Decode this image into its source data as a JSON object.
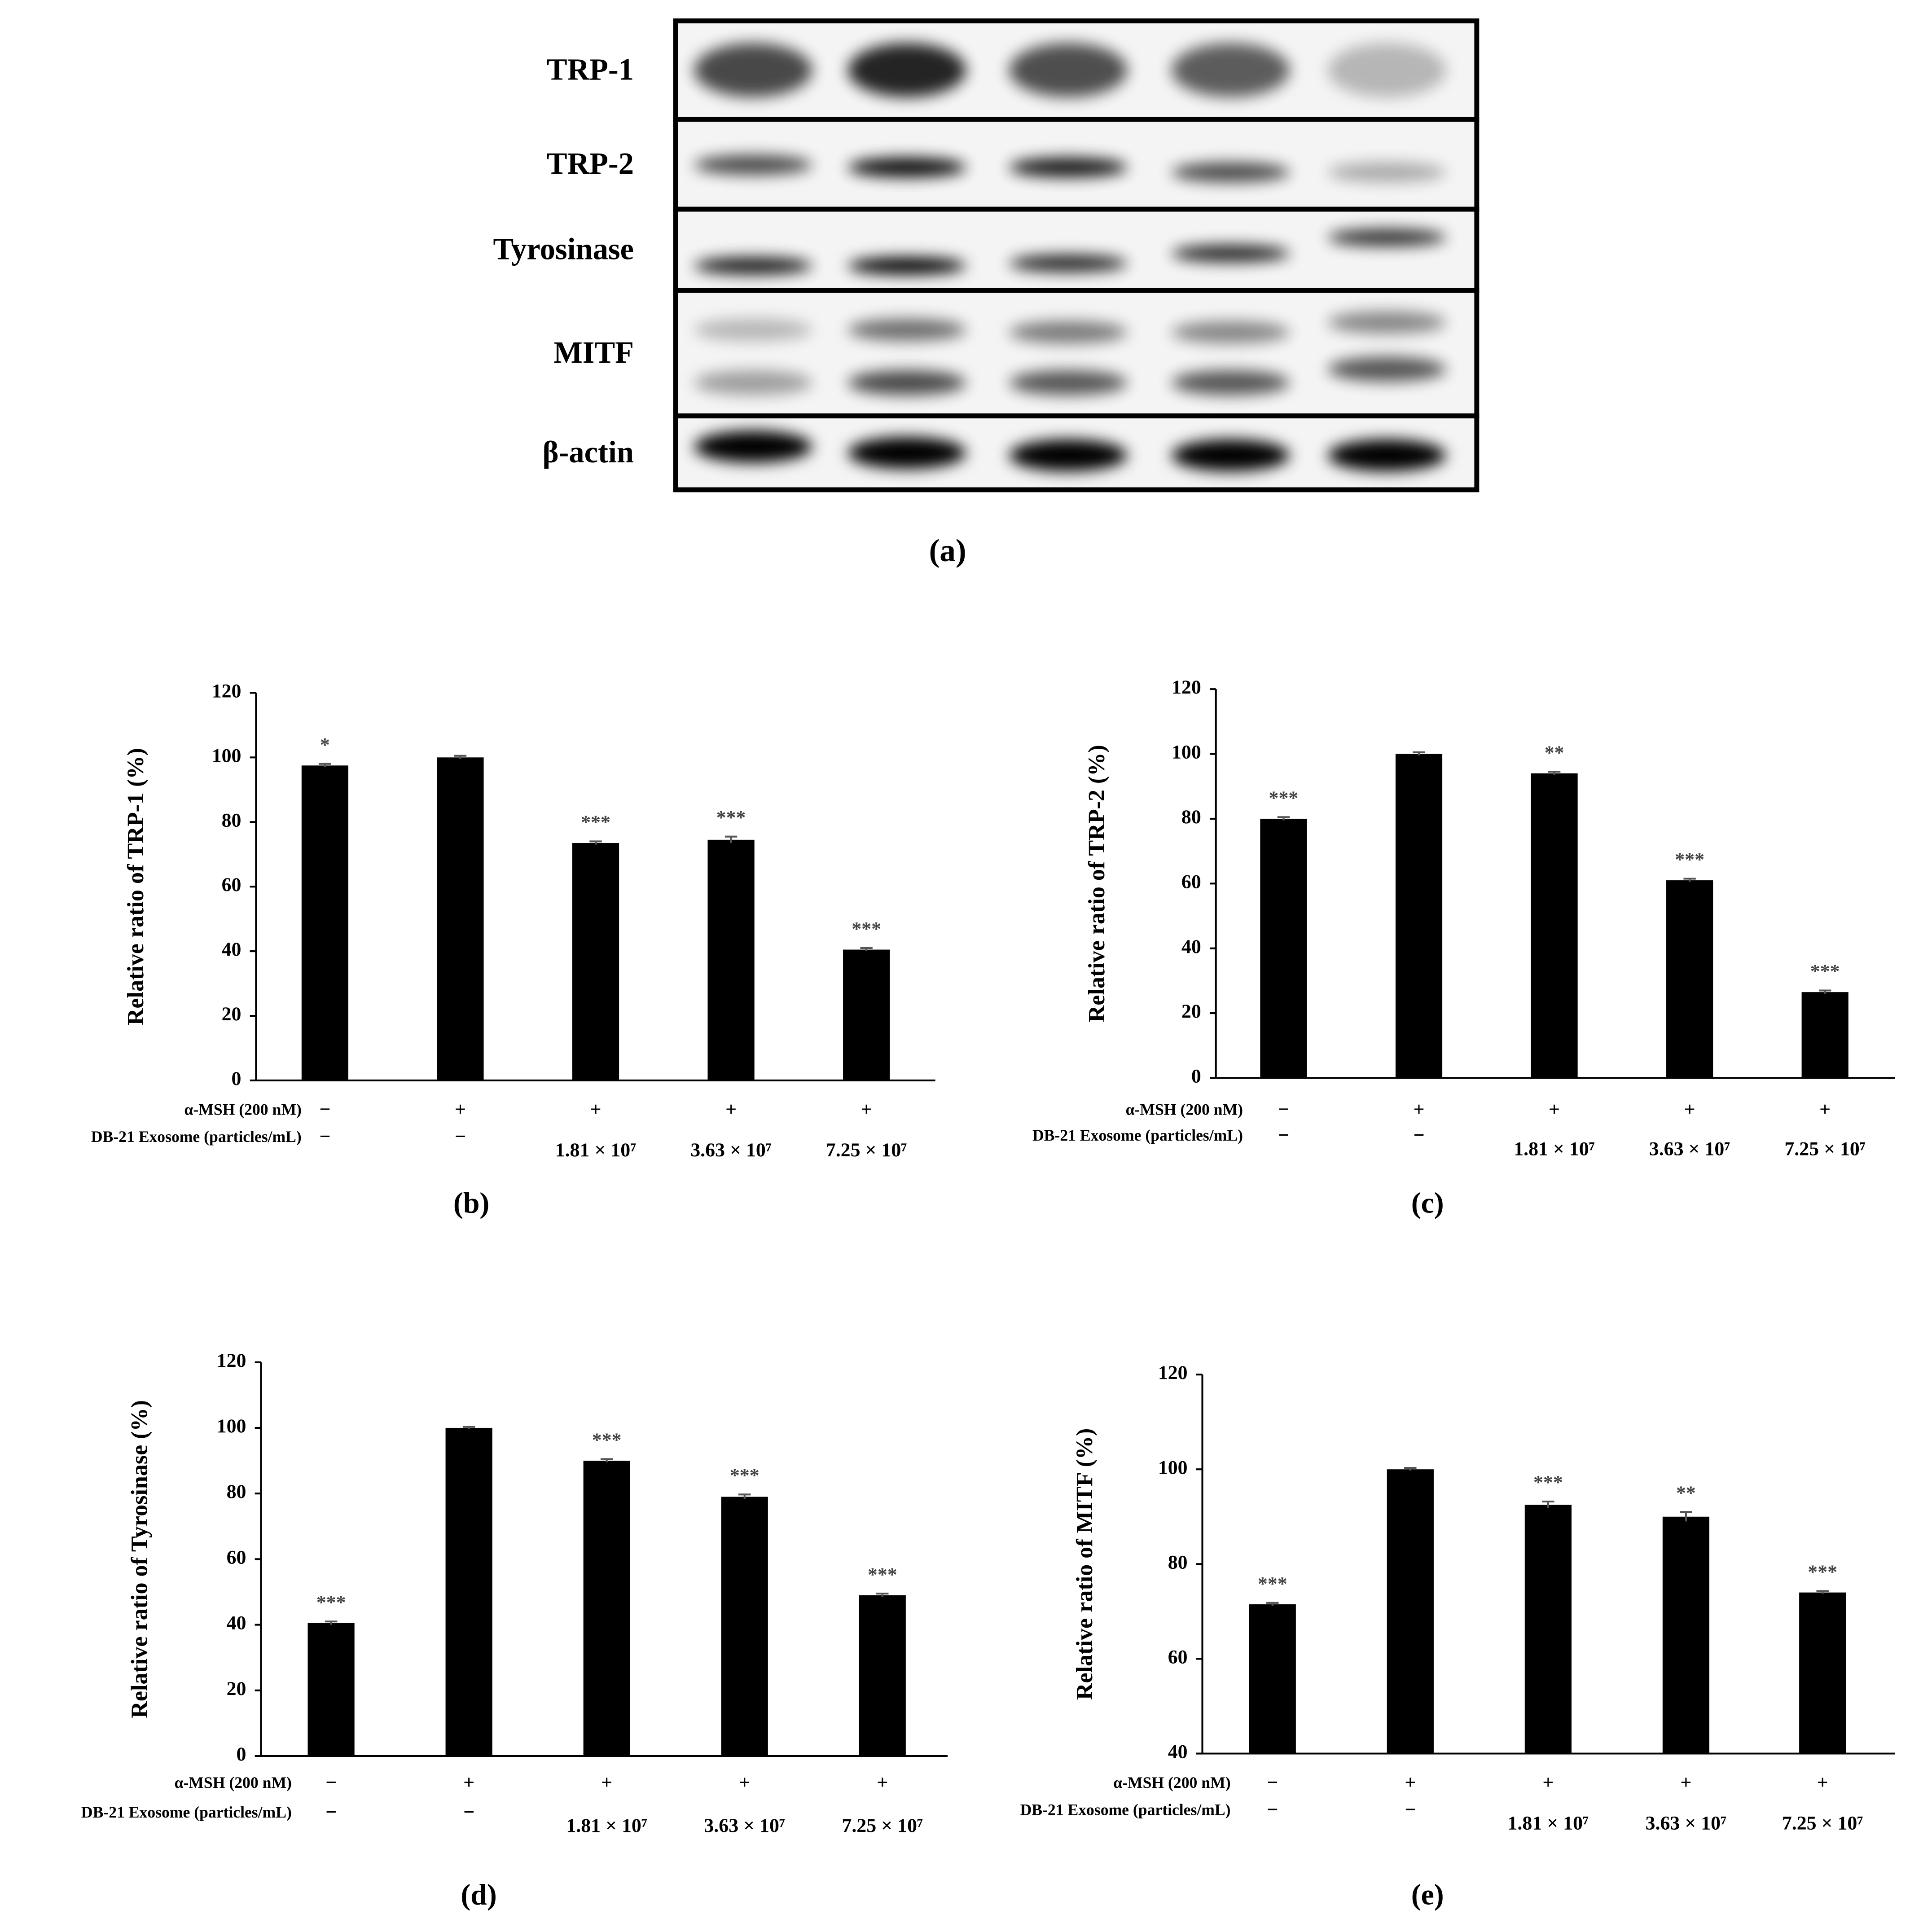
{
  "blot": {
    "rows": [
      "TRP-1",
      "TRP-2",
      "Tyrosinase",
      "MITF",
      "β-actin"
    ],
    "panel": "(a)"
  },
  "chart_data": [
    {
      "type": "bar",
      "panel": "(b)",
      "ylabel": "Relative ratio of TRP-1 (%)",
      "color": "#000000",
      "row_labels": [
        "α-MSH (200 nM)",
        "DB-21 Exosome (particles/mL)"
      ],
      "msh": [
        "−",
        "+",
        "+",
        "+",
        "+"
      ],
      "exosome": [
        "−",
        "−",
        "1.81 × 10⁷",
        "3.63 × 10⁷",
        "7.25 × 10⁷"
      ],
      "values": [
        97.5,
        100,
        73.5,
        74.5,
        40.5
      ],
      "errors": [
        0.5,
        0.5,
        0.5,
        1,
        0.5
      ],
      "annotations": [
        "*",
        null,
        "***",
        "***",
        "***"
      ],
      "ylim": [
        0,
        120
      ],
      "yticks": [
        0,
        20,
        40,
        60,
        80,
        100,
        120
      ]
    },
    {
      "type": "bar",
      "panel": "(c)",
      "ylabel": "Relative ratio of TRP-2 (%)",
      "color": "#000000",
      "row_labels": [
        "α-MSH (200 nM)",
        "DB-21 Exosome (particles/mL)"
      ],
      "msh": [
        "−",
        "+",
        "+",
        "+",
        "+"
      ],
      "exosome": [
        "−",
        "−",
        "1.81 × 10⁷",
        "3.63 × 10⁷",
        "7.25 × 10⁷"
      ],
      "values": [
        80,
        100,
        94,
        61,
        26.5
      ],
      "errors": [
        0.5,
        0.5,
        0.5,
        0.5,
        0.5
      ],
      "annotations": [
        "***",
        null,
        "**",
        "***",
        "***"
      ],
      "ylim": [
        0,
        120
      ],
      "yticks": [
        0,
        20,
        40,
        60,
        80,
        100,
        120
      ]
    },
    {
      "type": "bar",
      "panel": "(d)",
      "ylabel": "Relative ratio of Tyrosinase (%)",
      "color": "#000000",
      "row_labels": [
        "α-MSH (200 nM)",
        "DB-21 Exosome (particles/mL)"
      ],
      "msh": [
        "−",
        "+",
        "+",
        "+",
        "+"
      ],
      "exosome": [
        "−",
        "−",
        "1.81 × 10⁷",
        "3.63 × 10⁷",
        "7.25 × 10⁷"
      ],
      "values": [
        40.5,
        100,
        90,
        79,
        49
      ],
      "errors": [
        0.5,
        0.3,
        0.5,
        0.7,
        0.5
      ],
      "annotations": [
        "***",
        null,
        "***",
        "***",
        "***"
      ],
      "ylim": [
        0,
        120
      ],
      "yticks": [
        0,
        20,
        40,
        60,
        80,
        100,
        120
      ]
    },
    {
      "type": "bar",
      "panel": "(e)",
      "ylabel": "Relative ratio of MITF (%)",
      "color": "#000000",
      "row_labels": [
        "α-MSH (200 nM)",
        "DB-21 Exosome (particles/mL)"
      ],
      "msh": [
        "−",
        "+",
        "+",
        "+",
        "+"
      ],
      "exosome": [
        "−",
        "−",
        "1.81 × 10⁷",
        "3.63 × 10⁷",
        "7.25 × 10⁷"
      ],
      "values": [
        71.5,
        100,
        92.5,
        90,
        74
      ],
      "errors": [
        0.3,
        0.3,
        0.7,
        1,
        0.3
      ],
      "annotations": [
        "***",
        null,
        "***",
        "**",
        "***"
      ],
      "ylim": [
        40,
        120
      ],
      "yticks": [
        40,
        60,
        80,
        100,
        120
      ]
    }
  ]
}
